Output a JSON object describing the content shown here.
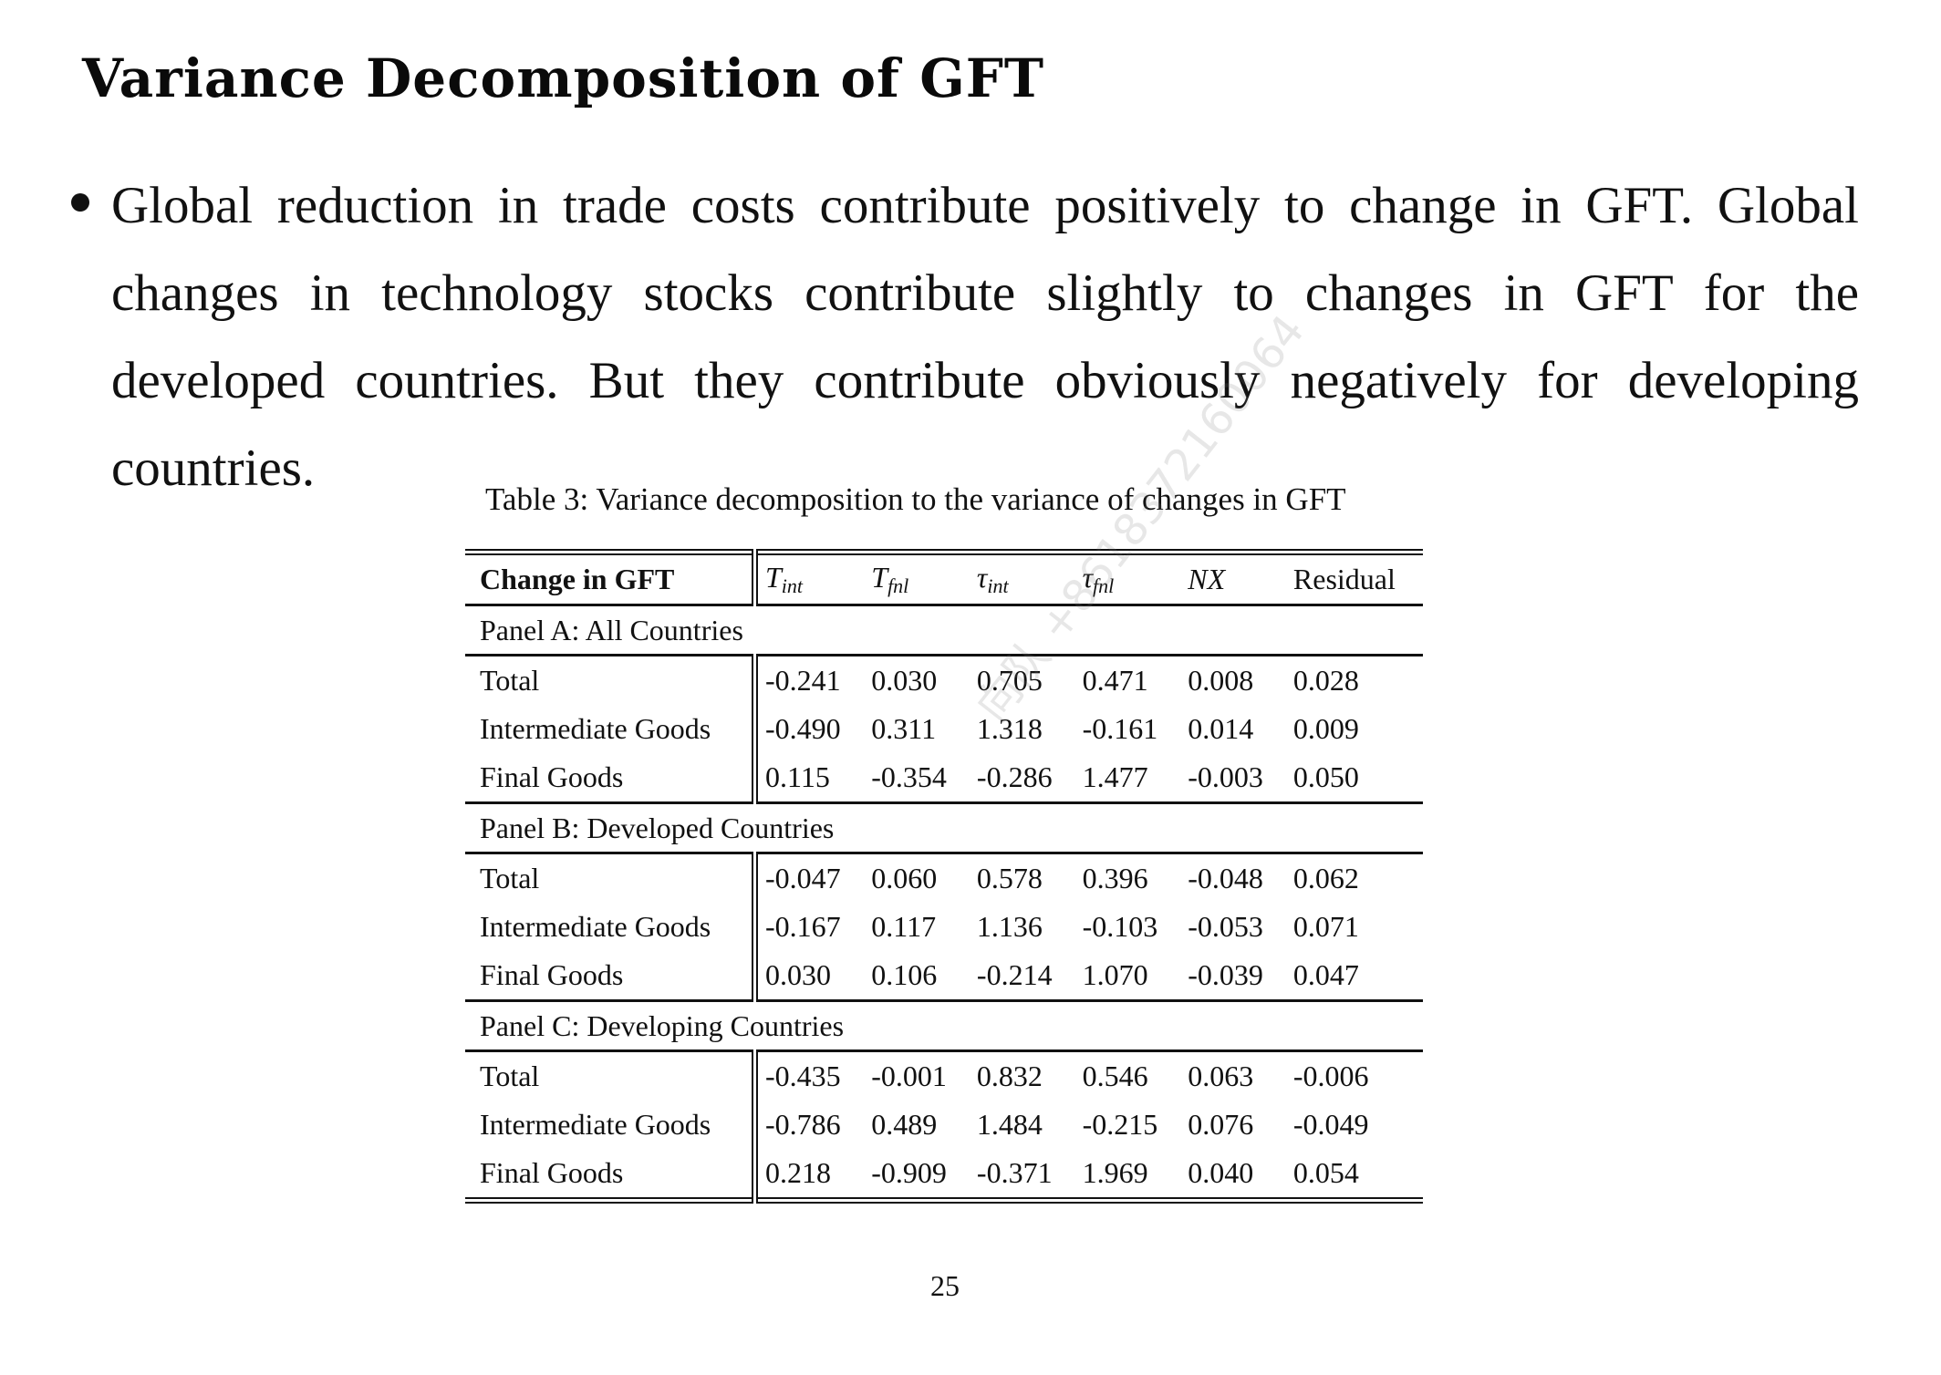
{
  "heading": "Variance Decomposition of GFT",
  "bullet": "Global reduction in trade costs contribute positively to change in GFT. Global changes in technology stocks contribute slightly to changes in GFT for the developed countries. But they contribute obviously negatively for developing countries.",
  "table": {
    "caption": "Table 3: Variance decomposition to the variance of changes in GFT",
    "header": {
      "label": "Change in GFT",
      "cols": [
        {
          "base": "T",
          "sub": "int"
        },
        {
          "base": "T",
          "sub": "fnl"
        },
        {
          "base": "τ",
          "sub": "int"
        },
        {
          "base": "τ",
          "sub": "fnl"
        },
        {
          "base": "NX",
          "sub": ""
        },
        {
          "base": "Residual",
          "sub": ""
        }
      ]
    },
    "panels": [
      {
        "title": "Panel A: All Countries",
        "rows": [
          {
            "label": "Total",
            "values": [
              "-0.241",
              "0.030",
              "0.705",
              "0.471",
              "0.008",
              "0.028"
            ]
          },
          {
            "label": "Intermediate Goods",
            "values": [
              "-0.490",
              "0.311",
              "1.318",
              "-0.161",
              "0.014",
              "0.009"
            ]
          },
          {
            "label": "Final Goods",
            "values": [
              "0.115",
              "-0.354",
              "-0.286",
              "1.477",
              "-0.003",
              "0.050"
            ]
          }
        ]
      },
      {
        "title": "Panel B: Developed Countries",
        "rows": [
          {
            "label": "Total",
            "values": [
              "-0.047",
              "0.060",
              "0.578",
              "0.396",
              "-0.048",
              "0.062"
            ]
          },
          {
            "label": "Intermediate Goods",
            "values": [
              "-0.167",
              "0.117",
              "1.136",
              "-0.103",
              "-0.053",
              "0.071"
            ]
          },
          {
            "label": "Final Goods",
            "values": [
              "0.030",
              "0.106",
              "-0.214",
              "1.070",
              "-0.039",
              "0.047"
            ]
          }
        ]
      },
      {
        "title": "Panel C: Developing Countries",
        "rows": [
          {
            "label": "Total",
            "values": [
              "-0.435",
              "-0.001",
              "0.832",
              "0.546",
              "0.063",
              "-0.006"
            ]
          },
          {
            "label": "Intermediate Goods",
            "values": [
              "-0.786",
              "0.489",
              "1.484",
              "-0.215",
              "0.076",
              "-0.049"
            ]
          },
          {
            "label": "Final Goods",
            "values": [
              "0.218",
              "-0.909",
              "-0.371",
              "1.969",
              "0.040",
              "0.054"
            ]
          }
        ]
      }
    ]
  },
  "page_number": "25",
  "watermark": "向队 +8618372160064"
}
